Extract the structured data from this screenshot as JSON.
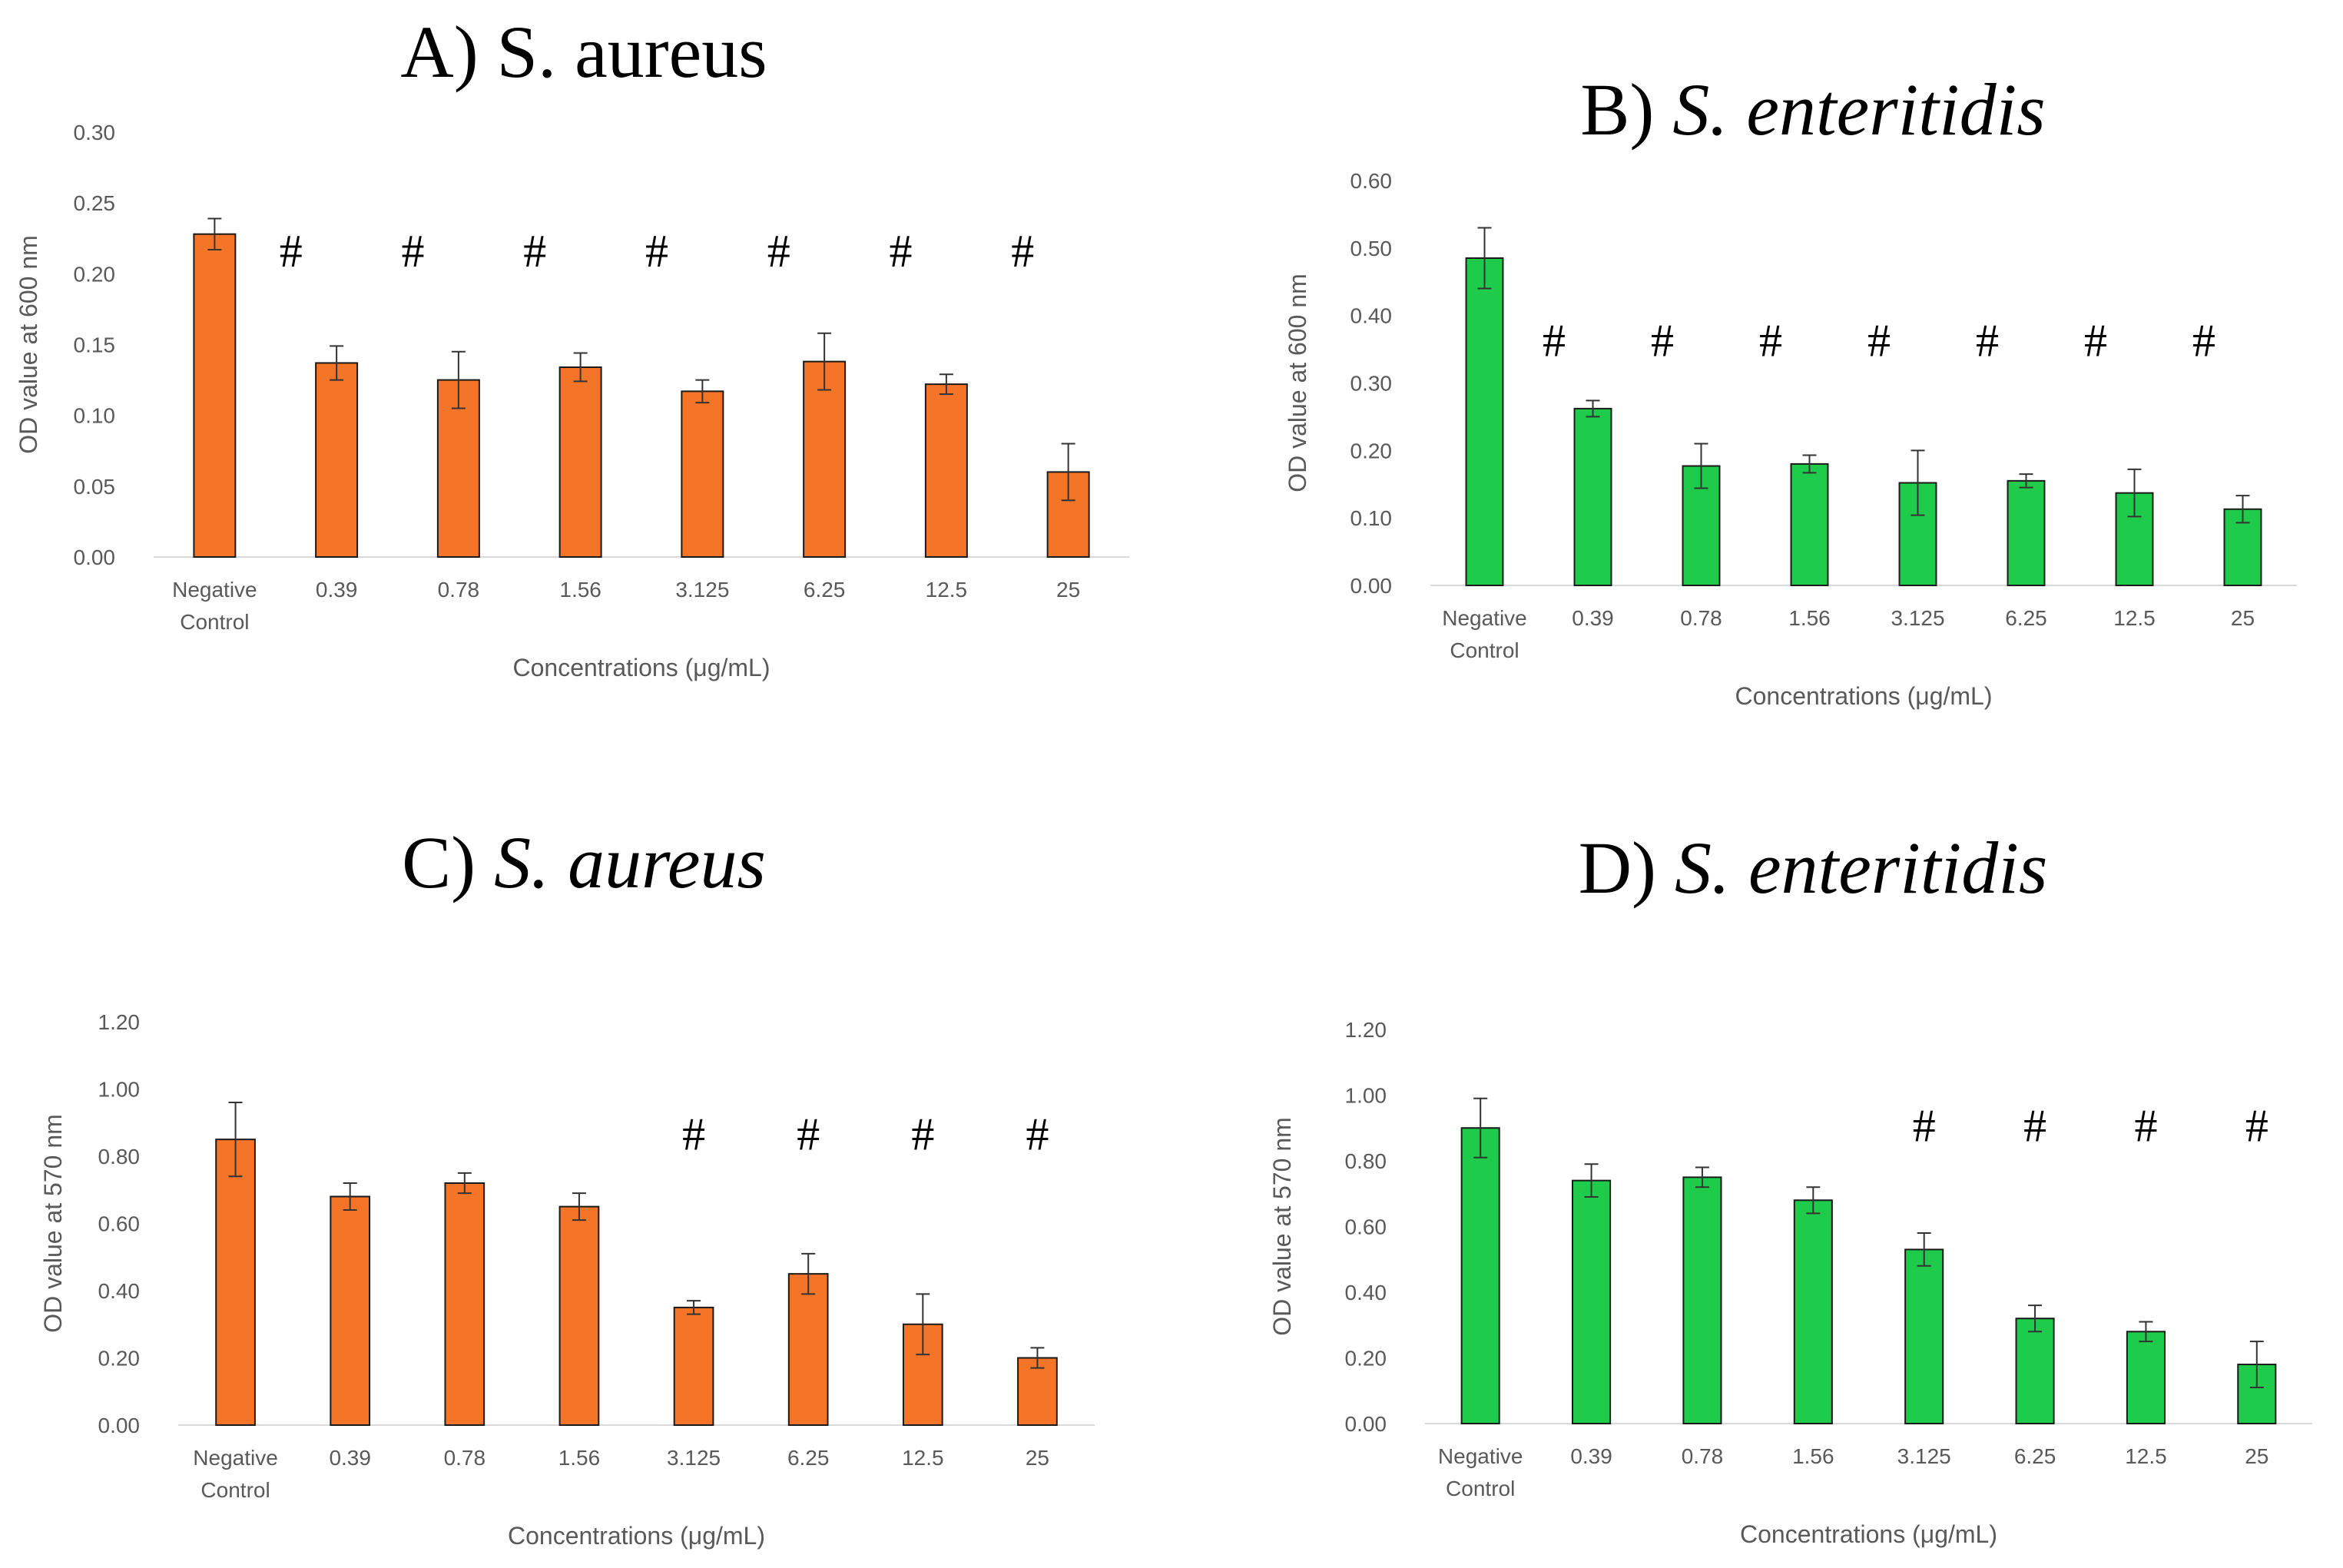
{
  "chart_data": [
    {
      "type": "bar",
      "title_prefix": "A)",
      "title_organism": "S. aureus",
      "title_italic": false,
      "categories": [
        "Negative Control",
        "0.39",
        "0.78",
        "1.56",
        "3.125",
        "6.25",
        "12.5",
        "25"
      ],
      "values": [
        0.228,
        0.137,
        0.125,
        0.134,
        0.117,
        0.138,
        0.122,
        0.06
      ],
      "errors": [
        0.011,
        0.012,
        0.02,
        0.01,
        0.008,
        0.02,
        0.007,
        0.02
      ],
      "significance": [
        "",
        "#",
        "#",
        "#",
        "#",
        "#",
        "#",
        "#"
      ],
      "xlabel": "Concentrations (μg/mL)",
      "ylabel": "OD value at 600 nm",
      "ylim": [
        0,
        0.3
      ],
      "yticks": [
        "0.00",
        "0.05",
        "0.10",
        "0.15",
        "0.20",
        "0.25",
        "0.30"
      ],
      "color": "#F47528",
      "grid": false
    },
    {
      "type": "bar",
      "title_prefix": "B)",
      "title_organism": "S. enteritidis",
      "title_italic": true,
      "categories": [
        "Negative Control",
        "0.39",
        "0.78",
        "1.56",
        "3.125",
        "6.25",
        "12.5",
        "25"
      ],
      "values": [
        0.485,
        0.262,
        0.177,
        0.18,
        0.152,
        0.155,
        0.137,
        0.113
      ],
      "errors": [
        0.045,
        0.012,
        0.033,
        0.013,
        0.048,
        0.01,
        0.035,
        0.02
      ],
      "significance": [
        "",
        "#",
        "#",
        "#",
        "#",
        "#",
        "#",
        "#"
      ],
      "xlabel": "Concentrations (μg/mL)",
      "ylabel": "OD value at 600 nm",
      "ylim": [
        0,
        0.6
      ],
      "yticks": [
        "0.00",
        "0.10",
        "0.20",
        "0.30",
        "0.40",
        "0.50",
        "0.60"
      ],
      "color": "#1FCB4A",
      "grid": false
    },
    {
      "type": "bar",
      "title_prefix": "C)",
      "title_organism": "S. aureus",
      "title_italic": true,
      "categories": [
        "Negative Control",
        "0.39",
        "0.78",
        "1.56",
        "3.125",
        "6.25",
        "12.5",
        "25"
      ],
      "values": [
        0.85,
        0.68,
        0.72,
        0.65,
        0.35,
        0.45,
        0.3,
        0.2
      ],
      "errors": [
        0.11,
        0.04,
        0.03,
        0.04,
        0.02,
        0.06,
        0.09,
        0.03
      ],
      "significance": [
        "",
        "",
        "",
        "",
        "#",
        "#",
        "#",
        "#"
      ],
      "xlabel": "Concentrations (μg/mL)",
      "ylabel": "OD value at 570 nm",
      "ylim": [
        0,
        1.2
      ],
      "yticks": [
        "0.00",
        "0.20",
        "0.40",
        "0.60",
        "0.80",
        "1.00",
        "1.20"
      ],
      "color": "#F47528",
      "grid": false
    },
    {
      "type": "bar",
      "title_prefix": "D)",
      "title_organism": "S. enteritidis",
      "title_italic": true,
      "categories": [
        "Negative Control",
        "0.39",
        "0.78",
        "1.56",
        "3.125",
        "6.25",
        "12.5",
        "25"
      ],
      "values": [
        0.9,
        0.74,
        0.75,
        0.68,
        0.53,
        0.32,
        0.28,
        0.18
      ],
      "errors": [
        0.09,
        0.05,
        0.03,
        0.04,
        0.05,
        0.04,
        0.03,
        0.07
      ],
      "significance": [
        "",
        "",
        "",
        "",
        "#",
        "#",
        "#",
        "#"
      ],
      "xlabel": "Concentrations (μg/mL)",
      "ylabel": "OD value at 570 nm",
      "ylim": [
        0,
        1.2
      ],
      "yticks": [
        "0.00",
        "0.20",
        "0.40",
        "0.60",
        "0.80",
        "1.00",
        "1.20"
      ],
      "color": "#1FCB4A",
      "grid": false
    }
  ]
}
